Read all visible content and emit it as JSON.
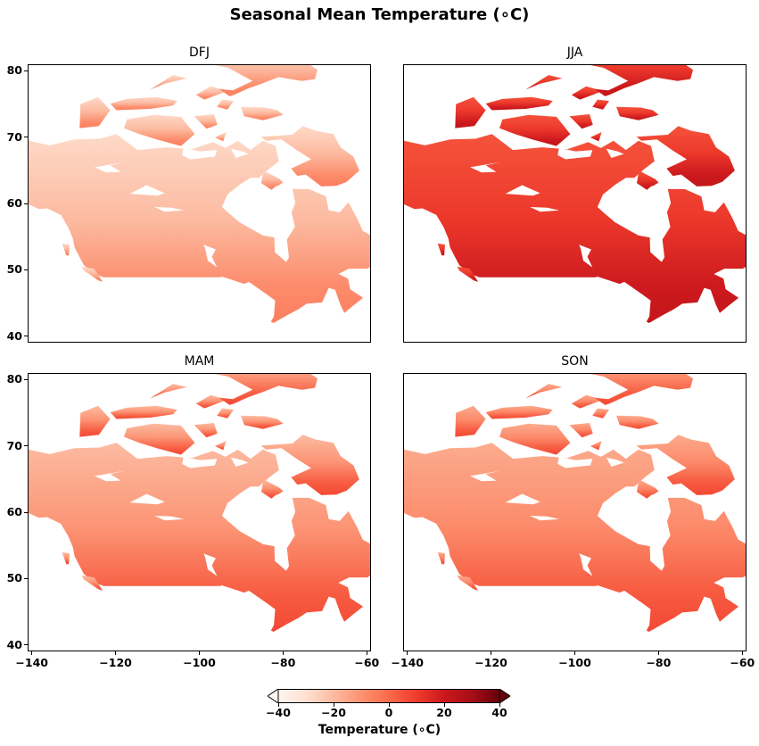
{
  "figure": {
    "title": "Seasonal Mean Temperature (∘C)"
  },
  "chart_data": [
    {
      "type": "heatmap",
      "panel": "DFJ",
      "title": "DFJ",
      "xlim": [
        -141,
        -59
      ],
      "ylim": [
        39,
        81
      ],
      "x_ticks": [
        -140,
        -120,
        -100,
        -80,
        -60
      ],
      "x_tick_labels": [
        "−140",
        "−120",
        "−100",
        "−80",
        "−60"
      ],
      "y_ticks": [
        40,
        50,
        60,
        70,
        80
      ],
      "y_tick_labels": [
        "40",
        "50",
        "60",
        "70",
        "80"
      ],
      "show_x_tick_labels": false,
      "show_y_tick_labels": true,
      "approx_temperature_range": {
        "north": -28,
        "south": -5
      }
    },
    {
      "type": "heatmap",
      "panel": "JJA",
      "title": "JJA",
      "xlim": [
        -141,
        -59
      ],
      "ylim": [
        39,
        81
      ],
      "x_ticks": [
        -140,
        -120,
        -100,
        -80,
        -60
      ],
      "x_tick_labels": [
        "−140",
        "−120",
        "−100",
        "−80",
        "−60"
      ],
      "y_ticks": [
        40,
        50,
        60,
        70,
        80
      ],
      "y_tick_labels": [
        "40",
        "50",
        "60",
        "70",
        "80"
      ],
      "show_x_tick_labels": false,
      "show_y_tick_labels": false,
      "approx_temperature_range": {
        "north": 5,
        "south": 22
      }
    },
    {
      "type": "heatmap",
      "panel": "MAM",
      "title": "MAM",
      "xlim": [
        -141,
        -59
      ],
      "ylim": [
        39,
        81
      ],
      "x_ticks": [
        -140,
        -120,
        -100,
        -80,
        -60
      ],
      "x_tick_labels": [
        "−140",
        "−120",
        "−100",
        "−80",
        "−60"
      ],
      "y_ticks": [
        40,
        50,
        60,
        70,
        80
      ],
      "y_tick_labels": [
        "40",
        "50",
        "60",
        "70",
        "80"
      ],
      "show_x_tick_labels": true,
      "show_y_tick_labels": true,
      "approx_temperature_range": {
        "north": -20,
        "south": 7
      }
    },
    {
      "type": "heatmap",
      "panel": "SON",
      "title": "SON",
      "xlim": [
        -141,
        -59
      ],
      "ylim": [
        39,
        81
      ],
      "x_ticks": [
        -140,
        -120,
        -100,
        -80,
        -60
      ],
      "x_tick_labels": [
        "−140",
        "−120",
        "−100",
        "−80",
        "−60"
      ],
      "y_ticks": [
        40,
        50,
        60,
        70,
        80
      ],
      "y_tick_labels": [
        "40",
        "50",
        "60",
        "70",
        "80"
      ],
      "show_x_tick_labels": true,
      "show_y_tick_labels": false,
      "approx_temperature_range": {
        "north": -16,
        "south": 7
      }
    }
  ],
  "colorbar": {
    "label": "Temperature (∘C)",
    "vmin": -40,
    "vmax": 40,
    "ticks": [
      -40,
      -20,
      0,
      20,
      40
    ],
    "tick_labels": [
      "−40",
      "−20",
      "0",
      "20",
      "40"
    ],
    "extend": "both",
    "colormap": "Reds",
    "colors": [
      "#fff5f0",
      "#fee0d2",
      "#fcbba1",
      "#fc9272",
      "#fb6a4a",
      "#ef3b2c",
      "#cb181d",
      "#a50f15",
      "#67000d"
    ]
  }
}
